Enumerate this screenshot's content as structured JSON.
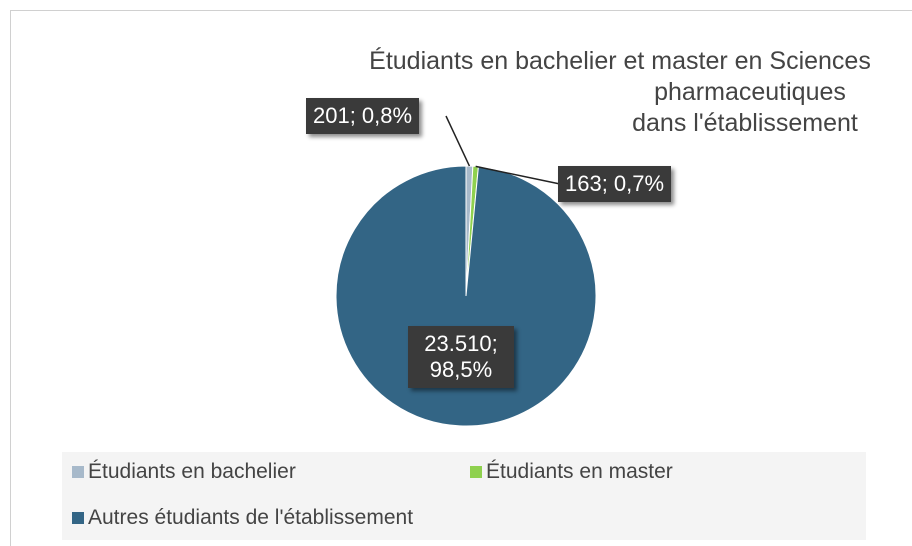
{
  "chart_data": {
    "type": "pie",
    "title": [
      "Étudiants en bachelier et master en Sciences",
      "pharmaceutiques",
      "dans l'établissement"
    ],
    "categories": [
      "Étudiants en bachelier",
      "Étudiants en master",
      "Autres étudiants de l'établissement"
    ],
    "values": [
      201,
      163,
      23510
    ],
    "value_labels": [
      "201; 0,8%",
      "163; 0,7%",
      "23.510; 98,5%"
    ],
    "colors": [
      "#a7b9ca",
      "#8fd14f",
      "#336585"
    ]
  }
}
